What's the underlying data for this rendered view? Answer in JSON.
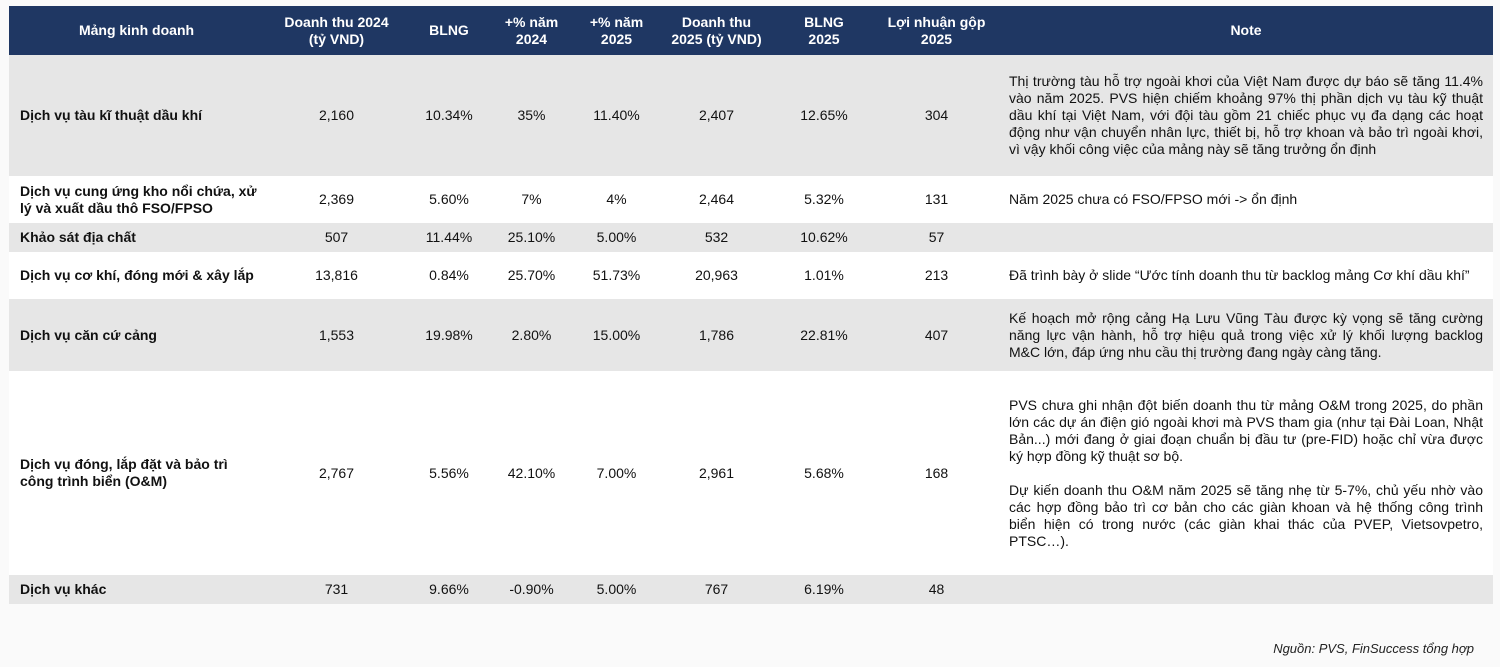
{
  "headers": [
    "Mảng kinh doanh",
    "Doanh thu 2024\n(tỷ VND)",
    "BLNG",
    "+% năm\n2024",
    "+% năm\n2025",
    "Doanh thu\n2025 (tỷ VND)",
    "BLNG\n2025",
    "Lợi nhuận gộp\n2025",
    "Note"
  ],
  "rows": [
    {
      "name": "Dịch vụ tàu kĩ thuật dầu khí",
      "rev2024": "2,160",
      "margin2024": "10.34%",
      "growth2024": "35%",
      "growth2025": "11.40%",
      "rev2025": "2,407",
      "margin2025": "12.65%",
      "profit2025": "304",
      "note": [
        "Thị trường tàu hỗ trợ ngoài khơi của Việt Nam được dự báo sẽ tăng 11.4% vào năm 2025. PVS hiện chiếm khoảng 97% thị phần dịch vụ tàu kỹ thuật dầu khí tại Việt Nam, với đội tàu gồm 21 chiếc phục vụ đa dạng các hoạt động như vận chuyển nhân lực, thiết bị, hỗ trợ khoan và bảo trì ngoài khơi, vì vậy khối công việc của mảng này sẽ tăng trưởng ổn định"
      ]
    },
    {
      "name": "Dịch vụ cung ứng kho nổi chứa, xử lý và xuất dầu thô FSO/FPSO",
      "rev2024": "2,369",
      "margin2024": "5.60%",
      "growth2024": "7%",
      "growth2025": "4%",
      "rev2025": "2,464",
      "margin2025": "5.32%",
      "profit2025": "131",
      "note": [
        "Năm 2025 chưa có FSO/FPSO mới -> ổn định"
      ]
    },
    {
      "name": "Khảo sát địa chất",
      "rev2024": "507",
      "margin2024": "11.44%",
      "growth2024": "25.10%",
      "growth2025": "5.00%",
      "rev2025": "532",
      "margin2025": "10.62%",
      "profit2025": "57",
      "note": []
    },
    {
      "name": "Dịch vụ cơ khí, đóng mới & xây lắp",
      "rev2024": "13,816",
      "margin2024": "0.84%",
      "growth2024": "25.70%",
      "growth2025": "51.73%",
      "rev2025": "20,963",
      "margin2025": "1.01%",
      "profit2025": "213",
      "note": [
        "Đã trình bày ở slide “Ước tính doanh thu từ backlog mảng Cơ khí dầu khí”"
      ]
    },
    {
      "name": "Dịch vụ căn cứ cảng",
      "rev2024": "1,553",
      "margin2024": "19.98%",
      "growth2024": "2.80%",
      "growth2025": "15.00%",
      "rev2025": "1,786",
      "margin2025": "22.81%",
      "profit2025": "407",
      "note": [
        "Kế hoạch mở rộng cảng Hạ Lưu Vũng Tàu được kỳ vọng sẽ tăng cường năng lực vận hành, hỗ trợ hiệu quả trong việc xử lý khối lượng backlog M&C lớn, đáp ứng nhu cầu thị trường đang ngày càng tăng."
      ]
    },
    {
      "name": "Dịch vụ đóng, lắp đặt và bảo trì công trình biển (O&M)",
      "rev2024": "2,767",
      "margin2024": "5.56%",
      "growth2024": "42.10%",
      "growth2025": "7.00%",
      "rev2025": "2,961",
      "margin2025": "5.68%",
      "profit2025": "168",
      "note": [
        "PVS chưa ghi nhận đột biến doanh thu từ mảng O&M trong 2025, do phần lớn các dự án điện gió ngoài khơi mà PVS tham gia (như tại Đài Loan, Nhật Bản...) mới đang ở giai đoạn chuẩn bị đầu tư (pre-FID) hoặc chỉ vừa được ký hợp đồng kỹ thuật sơ bộ.",
        "Dự kiến doanh thu O&M năm 2025 sẽ tăng nhẹ từ 5-7%, chủ yếu nhờ vào các hợp đồng bảo trì cơ bản cho các giàn khoan và hệ thống công trình biển hiện có trong nước (các giàn khai thác của PVEP, Vietsovpetro, PTSC…)."
      ]
    },
    {
      "name": "Dịch vụ khác",
      "rev2024": "731",
      "margin2024": "9.66%",
      "growth2024": "-0.90%",
      "growth2025": "5.00%",
      "rev2025": "767",
      "margin2025": "6.19%",
      "profit2025": "48",
      "note": []
    }
  ],
  "source": "Nguồn: PVS, FinSuccess tổng hợp"
}
